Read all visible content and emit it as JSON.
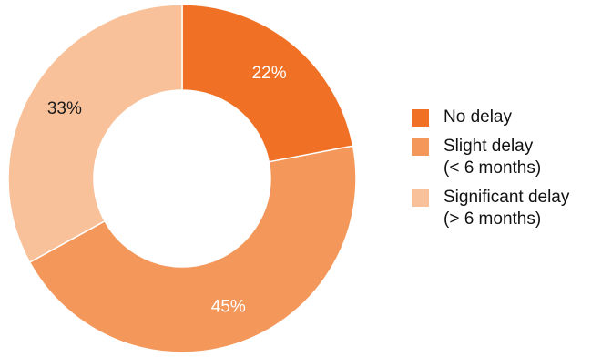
{
  "chart_data": {
    "type": "pie",
    "donut": true,
    "categories": [
      "No delay",
      "Slight delay",
      "Significant delay"
    ],
    "values": [
      22,
      45,
      33
    ],
    "value_labels": [
      "22%",
      "45%",
      "33%"
    ],
    "legend_sublabels": [
      "",
      "(< 6 months)",
      "(> 6 months)"
    ],
    "colors": [
      "#f07126",
      "#f4975a",
      "#f9c19a"
    ],
    "label_colors": [
      "#ffffff",
      "#ffffff",
      "#1a1a1a"
    ],
    "start_angle_deg": 0,
    "direction": "clockwise",
    "legend_position": "right",
    "title": ""
  }
}
